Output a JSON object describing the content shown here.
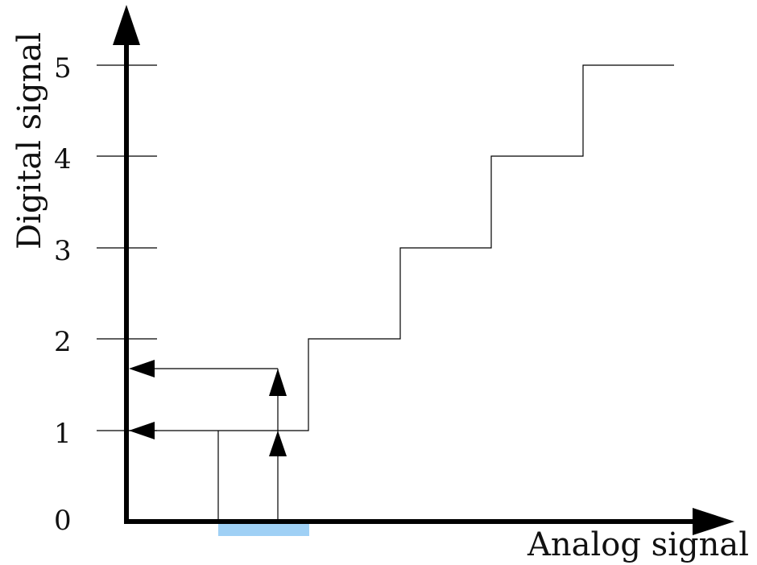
{
  "diagram": {
    "x_axis_label": "Analog signal",
    "y_axis_label": "Digital signal",
    "y_ticks": [
      "0",
      "1",
      "2",
      "3",
      "4",
      "5"
    ],
    "colors": {
      "lines": "#000000",
      "highlight": "#9fd0f5"
    }
  }
}
